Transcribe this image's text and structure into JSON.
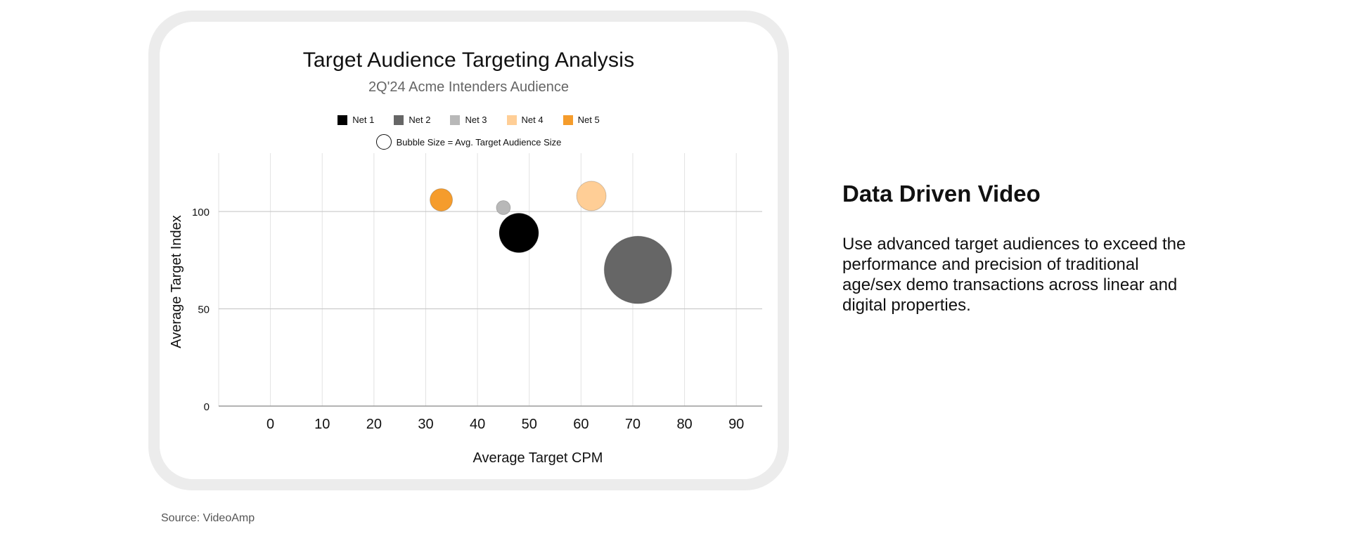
{
  "chart_data": {
    "type": "bubble",
    "title": "Target Audience Targeting Analysis",
    "subtitle": "2Q'24 Acme Intenders Audience",
    "xlabel": "Average Target CPM",
    "ylabel": "Average Target Index",
    "xlim": [
      -10,
      95
    ],
    "ylim": [
      0,
      130
    ],
    "x_ticks": [
      "0",
      "10",
      "20",
      "30",
      "40",
      "50",
      "60",
      "70",
      "80",
      "90"
    ],
    "y_ticks": [
      "0",
      "50",
      "100"
    ],
    "grid": "vertical and horizontal",
    "legend_position": "top-center",
    "bubble_size_note": "Bubble Size = Avg. Target Audience Size",
    "series": [
      {
        "name": "Net 1",
        "x": 48,
        "y": 89,
        "size": 28,
        "color": "#000000"
      },
      {
        "name": "Net 2",
        "x": 71,
        "y": 70,
        "size": 48,
        "color": "#666666"
      },
      {
        "name": "Net 3",
        "x": 45,
        "y": 102,
        "size": 10,
        "color": "#b8b8b8"
      },
      {
        "name": "Net 4",
        "x": 62,
        "y": 108,
        "size": 21,
        "color": "#ffce96"
      },
      {
        "name": "Net 5",
        "x": 33,
        "y": 106,
        "size": 16,
        "color": "#f59c2c"
      }
    ]
  },
  "side_panel": {
    "heading": "Data Driven Video",
    "body": "Use advanced target audiences to exceed the performance and precision of traditional age/sex demo transactions across linear and digital properties."
  },
  "footer": {
    "source": "Source: VideoAmp"
  }
}
